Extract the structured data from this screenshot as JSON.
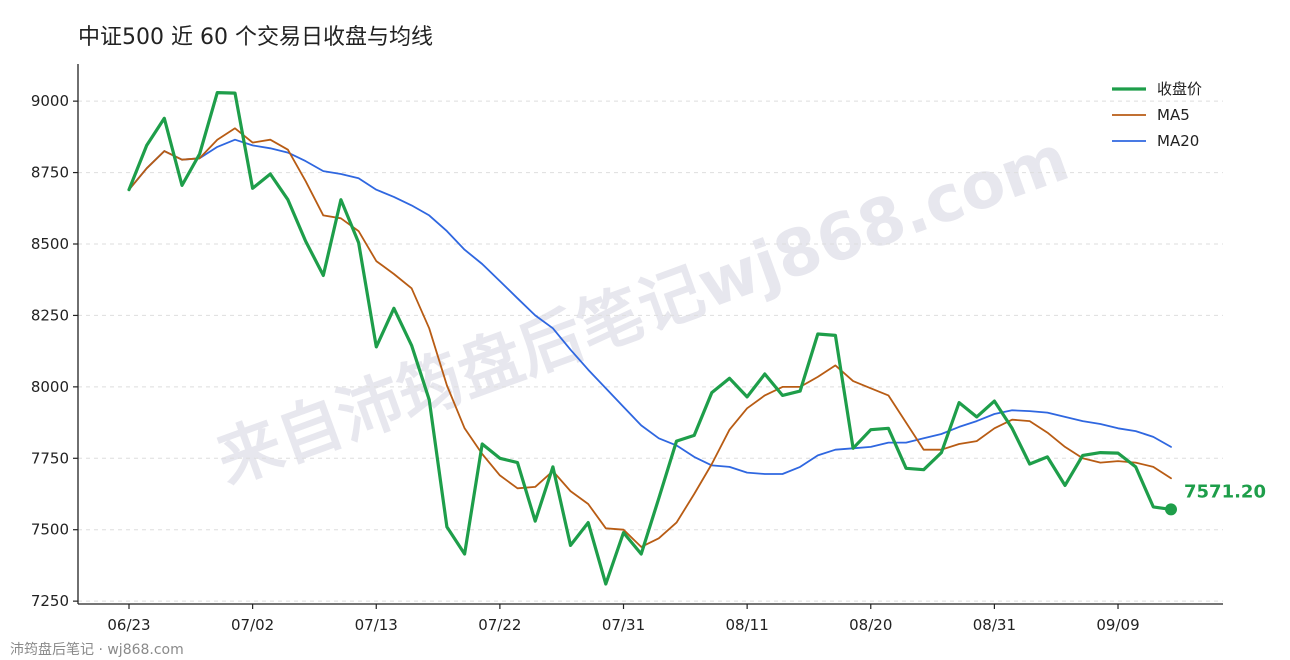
{
  "chart_data": {
    "type": "line",
    "title": "中证500 近 60 个交易日收盘与均线",
    "xlabel": "",
    "ylabel": "",
    "ylim": [
      7240,
      9130
    ],
    "yticks": [
      7250,
      7500,
      7750,
      8000,
      8250,
      8500,
      8750,
      9000
    ],
    "grid": "y-dashed",
    "legend_position": "top-right",
    "xticks": [
      {
        "index": 0,
        "label": "06/23"
      },
      {
        "index": 7,
        "label": "07/02"
      },
      {
        "index": 14,
        "label": "07/13"
      },
      {
        "index": 21,
        "label": "07/22"
      },
      {
        "index": 28,
        "label": "07/31"
      },
      {
        "index": 35,
        "label": "08/11"
      },
      {
        "index": 42,
        "label": "08/20"
      },
      {
        "index": 49,
        "label": "08/31"
      },
      {
        "index": 56,
        "label": "09/09"
      }
    ],
    "series": [
      {
        "name": "收盘价",
        "color": "#1e9e4a",
        "values": [
          8690,
          8845,
          8940,
          8705,
          8815,
          9030,
          9028,
          8695,
          8745,
          8655,
          8510,
          8390,
          8655,
          8505,
          8140,
          8275,
          8145,
          7955,
          7510,
          7415,
          7800,
          7750,
          7735,
          7530,
          7720,
          7445,
          7525,
          7310,
          7490,
          7415,
          7610,
          7810,
          7830,
          7980,
          8030,
          7965,
          8045,
          7970,
          7985,
          8185,
          8180,
          7785,
          7850,
          7855,
          7715,
          7710,
          7770,
          7945,
          7895,
          7950,
          7855,
          7730,
          7755,
          7655,
          7760,
          7770,
          7768,
          7720,
          7580,
          7571.2
        ]
      },
      {
        "name": "MA5",
        "color": "#b85c14",
        "values": [
          8690,
          8765,
          8825,
          8795,
          8800,
          8865,
          8905,
          8855,
          8865,
          8830,
          8720,
          8600,
          8590,
          8545,
          8440,
          8395,
          8345,
          8205,
          8005,
          7855,
          7765,
          7690,
          7645,
          7650,
          7705,
          7635,
          7590,
          7505,
          7500,
          7440,
          7470,
          7525,
          7625,
          7730,
          7850,
          7925,
          7970,
          8000,
          8000,
          8035,
          8075,
          8020,
          7995,
          7970,
          7875,
          7780,
          7780,
          7800,
          7810,
          7855,
          7885,
          7880,
          7840,
          7790,
          7750,
          7735,
          7740,
          7735,
          7720,
          7680
        ]
      },
      {
        "name": "MA20",
        "color": "#2f67e0",
        "values": [
          8690,
          8765,
          8825,
          8795,
          8800,
          8840,
          8865,
          8845,
          8835,
          8820,
          8790,
          8755,
          8745,
          8730,
          8690,
          8665,
          8635,
          8600,
          8545,
          8480,
          8430,
          8370,
          8310,
          8250,
          8205,
          8130,
          8060,
          7995,
          7930,
          7865,
          7820,
          7795,
          7755,
          7725,
          7720,
          7700,
          7695,
          7695,
          7720,
          7760,
          7780,
          7785,
          7790,
          7805,
          7805,
          7820,
          7835,
          7860,
          7880,
          7905,
          7918,
          7915,
          7910,
          7895,
          7880,
          7870,
          7855,
          7845,
          7825,
          7790
        ]
      }
    ],
    "last_value_label": "7571.20"
  },
  "footer": "沛筠盘后笔记 · wj868.com",
  "watermark": "来自沛筠盘后笔记wj868.com"
}
